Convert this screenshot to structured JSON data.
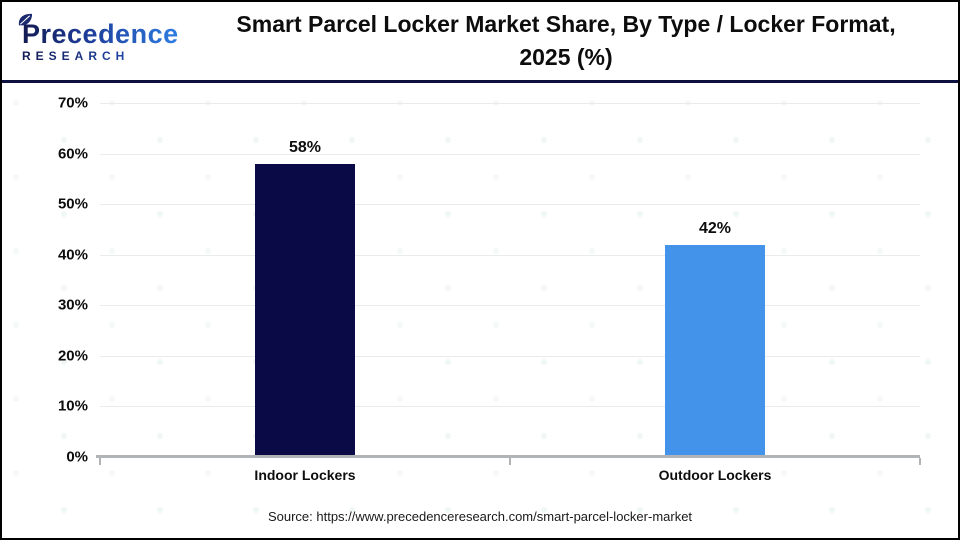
{
  "header": {
    "logo": {
      "brand": "Precedence",
      "sub": "RESEARCH"
    },
    "title_line1": "Smart Parcel Locker Market Share, By Type / Locker Format,",
    "title_line2": "2025 (%)"
  },
  "chart_data": {
    "type": "bar",
    "title": "Smart Parcel Locker Market Share, By Type / Locker Format, 2025 (%)",
    "categories": [
      "Indoor Lockers",
      "Outdoor Lockers"
    ],
    "values": [
      58,
      42
    ],
    "value_labels": [
      "58%",
      "42%"
    ],
    "bar_colors": [
      "#0a0a46",
      "#4493eb"
    ],
    "xlabel": "",
    "ylabel": "",
    "ylim": [
      0,
      70
    ],
    "ytick_step": 10,
    "ytick_suffix": "%",
    "grid": true,
    "legend": "none",
    "gridline_color": "#e9ebed",
    "axis_color": "#b1b4b6"
  },
  "footer": {
    "source": "Source: https://www.precedenceresearch.com/smart-parcel-locker-market"
  },
  "colors": {
    "accent_navy": "#0e1140",
    "brand_gradient_start": "#131b52",
    "brand_gradient_end": "#2e7de2",
    "frame_border": "#000000"
  }
}
